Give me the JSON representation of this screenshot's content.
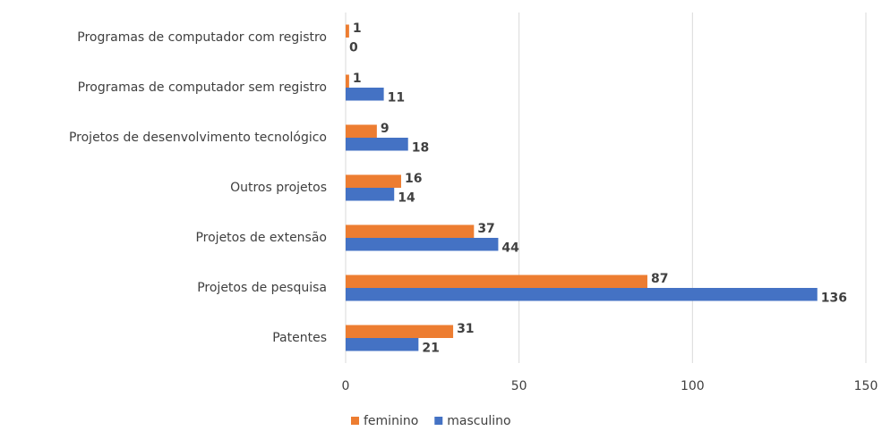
{
  "chart_data": {
    "type": "barh",
    "categories": [
      "Programas de computador com registro",
      "Programas de computador sem registro",
      "Projetos de desenvolvimento tecnológico",
      "Outros projetos",
      "Projetos de extensão",
      "Projetos de pesquisa",
      "Patentes"
    ],
    "series": [
      {
        "name": "feminino",
        "color": "#ed7d31",
        "values": [
          1,
          1,
          9,
          16,
          37,
          87,
          31
        ]
      },
      {
        "name": "masculino",
        "color": "#4472c4",
        "values": [
          0,
          11,
          18,
          14,
          44,
          136,
          21
        ]
      }
    ],
    "xlim": [
      0,
      150
    ],
    "xticks": [
      0,
      50,
      100,
      150
    ],
    "grid": true,
    "legend": "bottom"
  }
}
